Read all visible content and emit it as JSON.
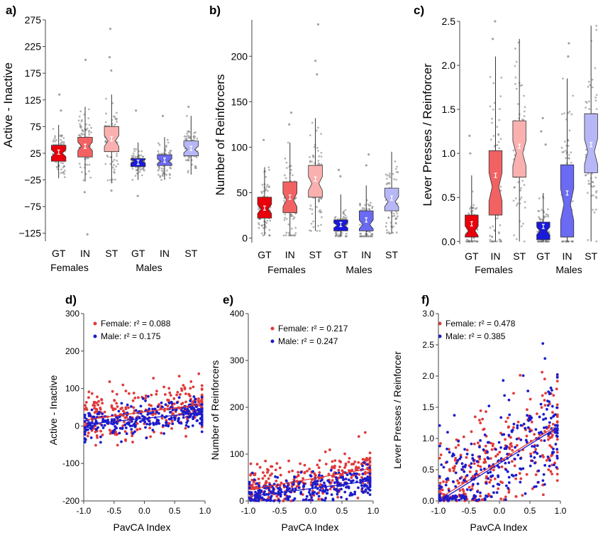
{
  "chart_data": [
    {
      "panel_label": "a)",
      "type": "box",
      "ylabel": "Active - Inactive",
      "ylim": [
        -140,
        275
      ],
      "yticks": [
        -125,
        -75,
        -25,
        25,
        75,
        125,
        175,
        225,
        275
      ],
      "categories": [
        "GT",
        "IN",
        "ST",
        "GT",
        "IN",
        "ST"
      ],
      "groups": [
        {
          "label": "Females",
          "span": [
            0,
            2
          ]
        },
        {
          "label": "Males",
          "span": [
            3,
            5
          ]
        }
      ],
      "colors": [
        "#e8000b",
        "#f26262",
        "#fbb0b0",
        "#1a1adb",
        "#6a6af2",
        "#b7b7f7"
      ],
      "boxes": [
        {
          "q1": 10,
          "median": 25,
          "q3": 40,
          "whisker_low": -22,
          "whisker_high": 78,
          "mean": 27,
          "outliers": [
            135,
            105
          ]
        },
        {
          "q1": 18,
          "median": 38,
          "q3": 55,
          "whisker_low": -28,
          "whisker_high": 112,
          "mean": 38,
          "outliers": [
            200,
            -48,
            -127
          ]
        },
        {
          "q1": 28,
          "median": 48,
          "q3": 75,
          "whisker_low": -30,
          "whisker_high": 135,
          "mean": 52,
          "outliers": [
            258,
            205,
            180,
            -45
          ]
        },
        {
          "q1": 0,
          "median": 10,
          "q3": 15,
          "whisker_low": -25,
          "whisker_high": 45,
          "mean": 8,
          "outliers": [
            105,
            -55
          ]
        },
        {
          "q1": 2,
          "median": 10,
          "q3": 22,
          "whisker_low": -25,
          "whisker_high": 55,
          "mean": 12,
          "outliers": [
            95
          ]
        },
        {
          "q1": 20,
          "median": 32,
          "q3": 48,
          "whisker_low": -15,
          "whisker_high": 95,
          "mean": 34,
          "outliers": [
            112
          ]
        }
      ],
      "points_per_box": 90
    },
    {
      "panel_label": "b)",
      "type": "box",
      "ylabel": "Number of Reinforcers",
      "ylim": [
        -5,
        240
      ],
      "yticks": [
        0,
        50,
        100,
        150,
        200
      ],
      "categories": [
        "GT",
        "IN",
        "ST",
        "GT",
        "IN",
        "ST"
      ],
      "groups": [
        {
          "label": "Females",
          "span": [
            0,
            2
          ]
        },
        {
          "label": "Males",
          "span": [
            3,
            5
          ]
        }
      ],
      "colors": [
        "#e8000b",
        "#f26262",
        "#fbb0b0",
        "#1a1adb",
        "#6a6af2",
        "#b7b7f7"
      ],
      "boxes": [
        {
          "q1": 22,
          "median": 32,
          "q3": 45,
          "whisker_low": 3,
          "whisker_high": 78,
          "mean": 33,
          "outliers": [
            108
          ]
        },
        {
          "q1": 28,
          "median": 42,
          "q3": 62,
          "whisker_low": 3,
          "whisker_high": 105,
          "mean": 45,
          "outliers": [
            138,
            125
          ]
        },
        {
          "q1": 45,
          "median": 60,
          "q3": 80,
          "whisker_low": 8,
          "whisker_high": 132,
          "mean": 65,
          "outliers": [
            235,
            195,
            180
          ]
        },
        {
          "q1": 8,
          "median": 14,
          "q3": 20,
          "whisker_low": 2,
          "whisker_high": 48,
          "mean": 15,
          "outliers": [
            75,
            68
          ]
        },
        {
          "q1": 8,
          "median": 15,
          "q3": 30,
          "whisker_low": 2,
          "whisker_high": 58,
          "mean": 20,
          "outliers": [
            92,
            80
          ]
        },
        {
          "q1": 30,
          "median": 40,
          "q3": 55,
          "whisker_low": 5,
          "whisker_high": 95,
          "mean": 44,
          "outliers": []
        }
      ],
      "points_per_box": 90
    },
    {
      "panel_label": "c)",
      "type": "box",
      "ylabel": "Lever Presses / Reinforcer",
      "ylim": [
        -0.03,
        2.5
      ],
      "yticks": [
        0.0,
        0.5,
        1.0,
        1.5,
        2.0,
        2.5
      ],
      "categories": [
        "GT",
        "IN",
        "ST",
        "GT",
        "IN",
        "ST"
      ],
      "groups": [
        {
          "label": "Females",
          "span": [
            0,
            2
          ]
        },
        {
          "label": "Males",
          "span": [
            3,
            5
          ]
        }
      ],
      "colors": [
        "#e8000b",
        "#f26262",
        "#fbb0b0",
        "#1a1adb",
        "#6a6af2",
        "#b7b7f7"
      ],
      "boxes": [
        {
          "q1": 0.05,
          "median": 0.12,
          "q3": 0.3,
          "whisker_low": 0.0,
          "whisker_high": 0.75,
          "mean": 0.2,
          "outliers": [
            1.2,
            1.0
          ]
        },
        {
          "q1": 0.3,
          "median": 0.62,
          "q3": 1.03,
          "whisker_low": 0.0,
          "whisker_high": 2.1,
          "mean": 0.75,
          "outliers": [
            2.5,
            2.3
          ]
        },
        {
          "q1": 0.73,
          "median": 1.0,
          "q3": 1.37,
          "whisker_low": 0.0,
          "whisker_high": 2.3,
          "mean": 1.08,
          "outliers": []
        },
        {
          "q1": 0.02,
          "median": 0.12,
          "q3": 0.22,
          "whisker_low": 0.0,
          "whisker_high": 0.55,
          "mean": 0.17,
          "outliers": [
            1.4,
            1.25,
            1.1
          ]
        },
        {
          "q1": 0.05,
          "median": 0.42,
          "q3": 0.87,
          "whisker_low": 0.0,
          "whisker_high": 1.85,
          "mean": 0.55,
          "outliers": [
            2.25,
            2.1
          ]
        },
        {
          "q1": 0.78,
          "median": 1.02,
          "q3": 1.45,
          "whisker_low": 0.0,
          "whisker_high": 2.45,
          "mean": 1.1,
          "outliers": []
        }
      ],
      "points_per_box": 90
    },
    {
      "panel_label": "d)",
      "type": "scatter",
      "xlabel": "PavCA Index",
      "ylabel": "Active - Inactive",
      "xlim": [
        -1.0,
        1.0
      ],
      "ylim": [
        -200,
        300
      ],
      "xticks": [
        -1.0,
        -0.5,
        0.0,
        0.5,
        1.0
      ],
      "yticks": [
        -200,
        -100,
        0,
        100,
        200,
        300
      ],
      "legend_position": "top-left",
      "series": [
        {
          "name": "Female",
          "r2_label": "r² = 0.088",
          "color": "#e03a3a",
          "fit": [
            [
              -0.95,
              17
            ],
            [
              0.9,
              57
            ]
          ],
          "y_at_min": 17,
          "y_at_max": 57,
          "spread": 32,
          "points": 300
        },
        {
          "name": "Male",
          "r2_label": "r² = 0.175",
          "color": "#1c1ccc",
          "fit": [
            [
              -0.95,
              5
            ],
            [
              0.9,
              35
            ]
          ],
          "y_at_min": 5,
          "y_at_max": 35,
          "spread": 22,
          "points": 300
        }
      ]
    },
    {
      "panel_label": "e)",
      "type": "scatter",
      "xlabel": "PavCA Index",
      "ylabel": "Number of Reinforcers",
      "xlim": [
        -1.0,
        1.0
      ],
      "ylim": [
        0,
        400
      ],
      "xticks": [
        -1.0,
        -0.5,
        0.0,
        0.5,
        1.0
      ],
      "yticks": [
        0,
        100,
        200,
        300,
        400
      ],
      "legend_position": "top-center",
      "series": [
        {
          "name": "Female",
          "r2_label": "r² = 0.217",
          "color": "#e03a3a",
          "fit": [
            [
              -0.95,
              25
            ],
            [
              0.9,
              68
            ]
          ],
          "y_at_min": 25,
          "y_at_max": 68,
          "spread": 22,
          "points": 300
        },
        {
          "name": "Male",
          "r2_label": "r² = 0.247",
          "color": "#1c1ccc",
          "fit": [
            [
              -0.95,
              10
            ],
            [
              0.9,
              42
            ]
          ],
          "y_at_min": 10,
          "y_at_max": 42,
          "spread": 15,
          "points": 300
        }
      ]
    },
    {
      "panel_label": "f)",
      "type": "scatter",
      "xlabel": "PavCA Index",
      "ylabel": "Lever Presses / Reinforcer",
      "xlim": [
        -1.0,
        1.0
      ],
      "ylim": [
        0.0,
        3.0
      ],
      "xticks": [
        -1.0,
        -0.5,
        0.0,
        0.5,
        1.0
      ],
      "yticks": [
        0.0,
        0.5,
        1.0,
        1.5,
        2.0,
        2.5,
        3.0
      ],
      "legend_position": "top-left",
      "series": [
        {
          "name": "Female",
          "r2_label": "r² = 0.478",
          "color": "#e03a3a",
          "fit": [
            [
              -0.95,
              0.06
            ],
            [
              0.9,
              1.18
            ]
          ],
          "y_at_min": 0.06,
          "y_at_max": 1.18,
          "spread": 0.42,
          "points": 300
        },
        {
          "name": "Male",
          "r2_label": "r² = 0.385",
          "color": "#1c1ccc",
          "fit": [
            [
              -0.95,
              0.02
            ],
            [
              0.9,
              1.15
            ]
          ],
          "y_at_min": 0.02,
          "y_at_max": 1.15,
          "spread": 0.45,
          "points": 300
        }
      ]
    }
  ]
}
